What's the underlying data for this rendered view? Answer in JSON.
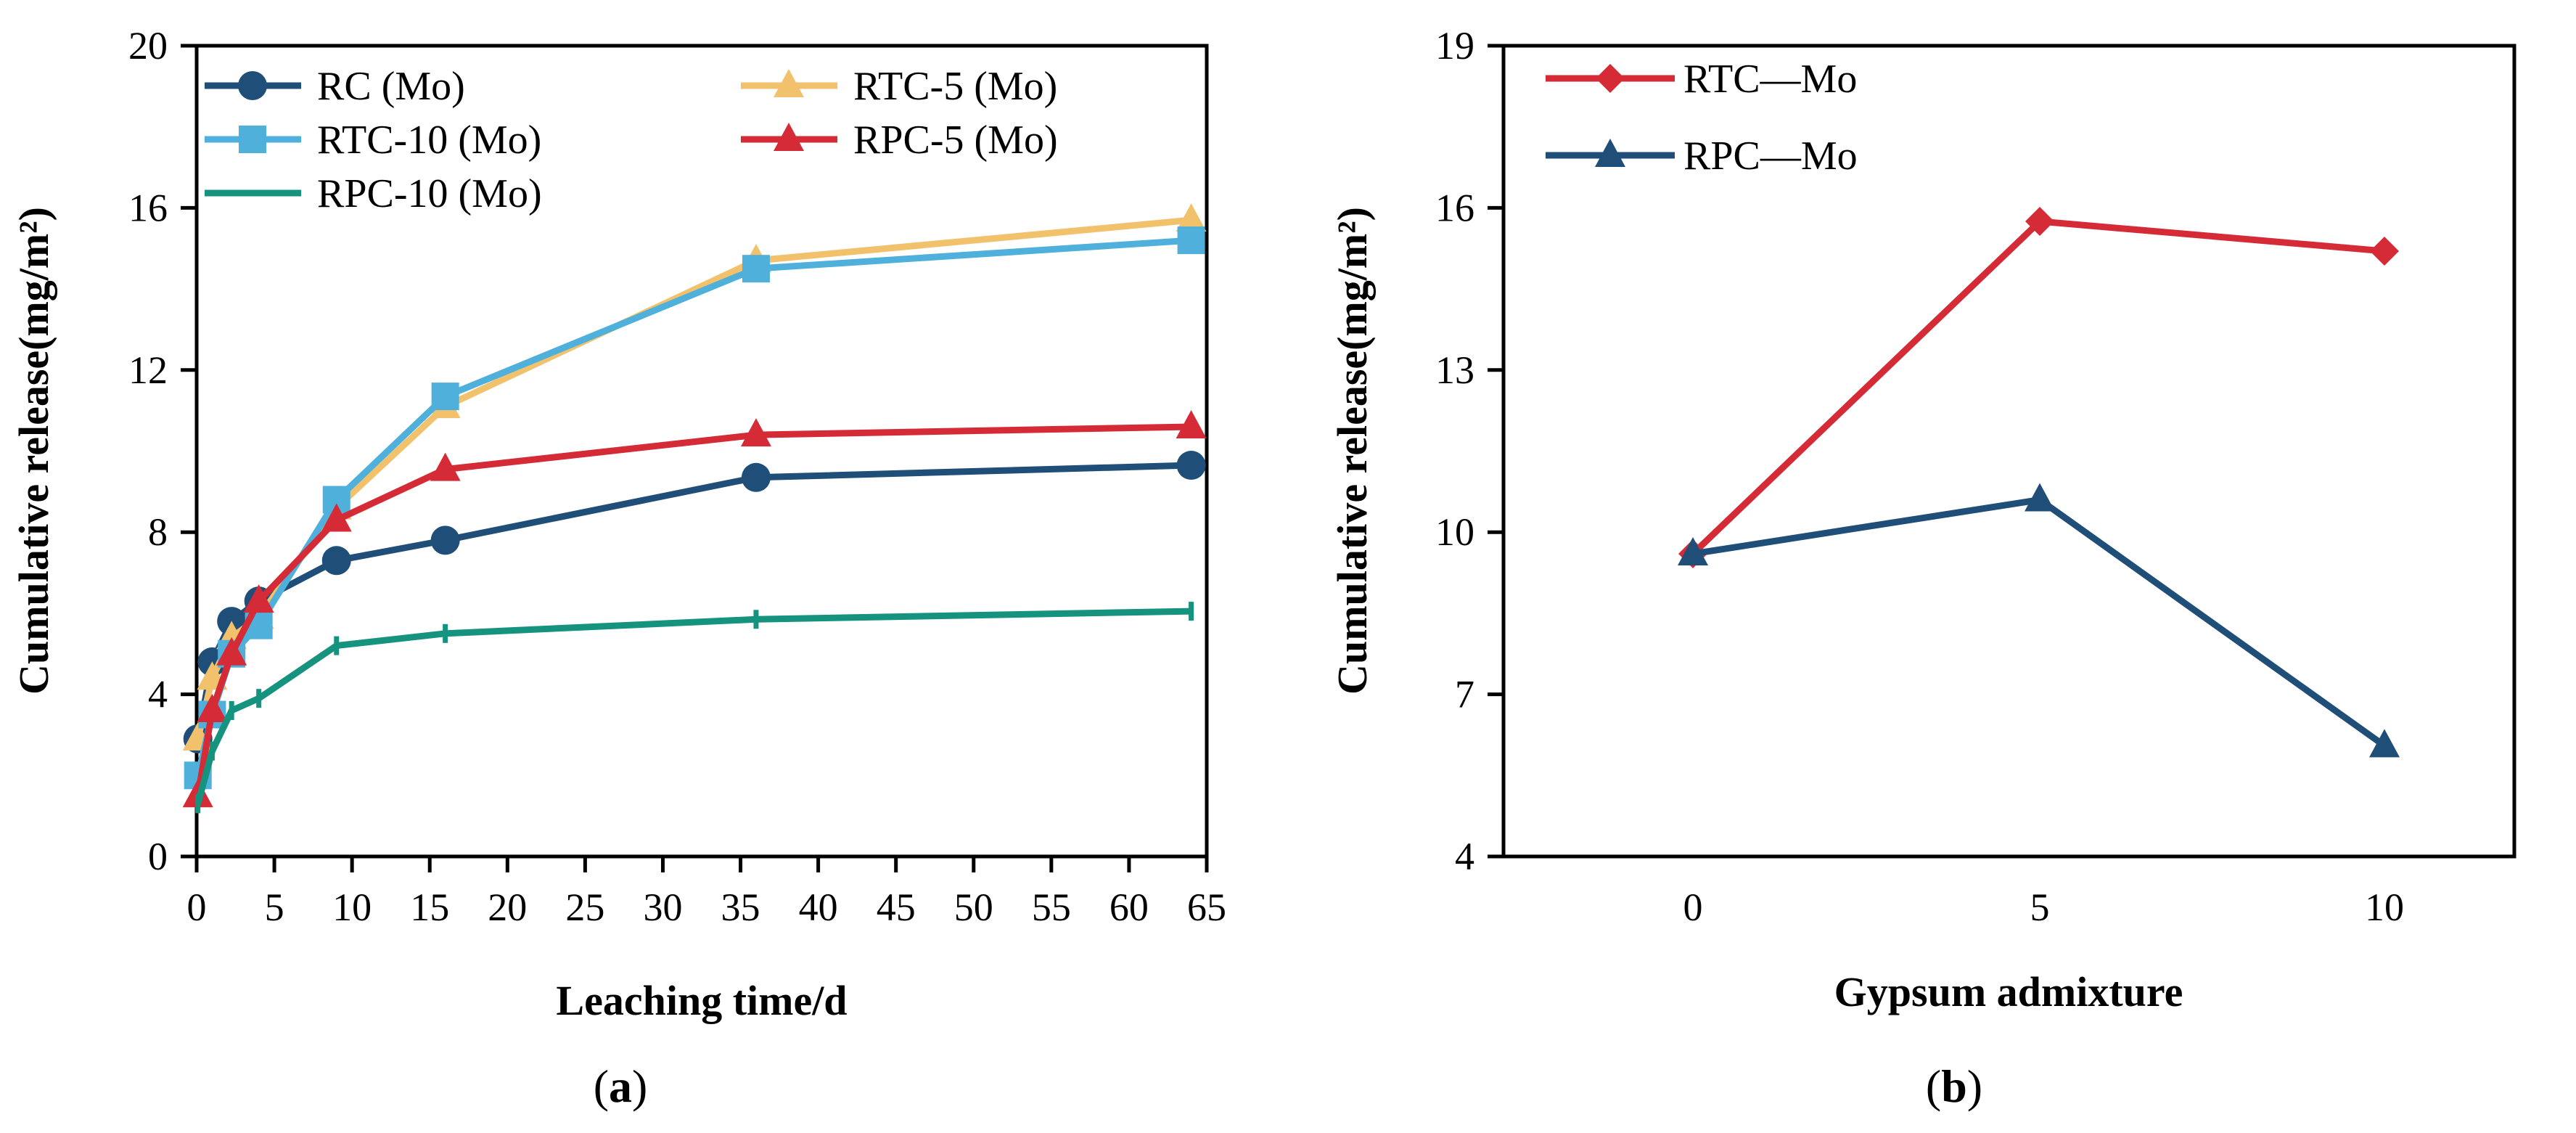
{
  "colors": {
    "RC": "#1f4e79",
    "RTC-5": "#f2c16b",
    "RTC-10": "#4fb0dc",
    "RPC-5": "#d42b36",
    "RPC-10": "#16937f",
    "RTC_b": "#d42b36",
    "RPC_b": "#1f4e79"
  },
  "chart_data": [
    {
      "type": "line",
      "panel_label": "a",
      "xlabel": "Leaching time/d",
      "ylabel": "Cumulative release(mg/m²)",
      "xlim": [
        0,
        65
      ],
      "ylim": [
        0,
        20
      ],
      "x_ticks": [
        "0",
        "5",
        "10",
        "15",
        "20",
        "25",
        "30",
        "35",
        "40",
        "45",
        "50",
        "55",
        "60",
        "65"
      ],
      "y_ticks": [
        "0",
        "4",
        "8",
        "12",
        "16",
        "20"
      ],
      "legend": {
        "placement": "top-left, two columns"
      },
      "series": [
        {
          "name": "RC (Mo)",
          "key": "RC",
          "marker": "circle",
          "x": [
            0.08,
            1,
            2.25,
            4,
            9,
            16,
            36,
            64
          ],
          "y": [
            2.9,
            4.8,
            5.8,
            6.3,
            7.3,
            7.8,
            9.35,
            9.65
          ]
        },
        {
          "name": "RTC-5 (Mo)",
          "key": "RTC-5",
          "marker": "triangle",
          "x": [
            0.08,
            1,
            2.25,
            4,
            9,
            16,
            36,
            64
          ],
          "y": [
            2.9,
            4.4,
            5.4,
            5.9,
            8.6,
            11.1,
            14.7,
            15.7
          ]
        },
        {
          "name": "RTC-10 (Mo)",
          "key": "RTC-10",
          "marker": "square",
          "x": [
            0.08,
            1,
            2.25,
            4,
            9,
            16,
            36,
            64
          ],
          "y": [
            2.0,
            3.5,
            5.0,
            5.7,
            8.8,
            11.35,
            14.5,
            15.2
          ]
        },
        {
          "name": "RPC-5 (Mo)",
          "key": "RPC-5",
          "marker": "triangle",
          "x": [
            0.08,
            1,
            2.25,
            4,
            9,
            16,
            36,
            64
          ],
          "y": [
            1.5,
            3.6,
            5.0,
            6.3,
            8.3,
            9.55,
            10.4,
            10.6
          ]
        },
        {
          "name": "RPC-10 (Mo)",
          "key": "RPC-10",
          "marker": "tick",
          "x": [
            0.08,
            1,
            2.25,
            4,
            9,
            16,
            36,
            64
          ],
          "y": [
            1.3,
            2.6,
            3.6,
            3.9,
            5.2,
            5.5,
            5.85,
            6.05
          ]
        }
      ]
    },
    {
      "type": "line",
      "panel_label": "b",
      "xlabel": "Gypsum admixture",
      "ylabel": "Cumulative release(mg/m²)",
      "categories": [
        "0",
        "5",
        "10"
      ],
      "ylim": [
        4,
        19
      ],
      "y_ticks": [
        "4",
        "7",
        "10",
        "13",
        "16",
        "19"
      ],
      "legend": {
        "placement": "top-left"
      },
      "series": [
        {
          "name": "RTC—Mo",
          "key": "RTC_b",
          "marker": "diamond",
          "values": [
            9.6,
            15.75,
            15.2
          ]
        },
        {
          "name": "RPC—Mo",
          "key": "RPC_b",
          "marker": "triangle",
          "values": [
            9.6,
            10.6,
            6.05
          ]
        }
      ]
    }
  ]
}
